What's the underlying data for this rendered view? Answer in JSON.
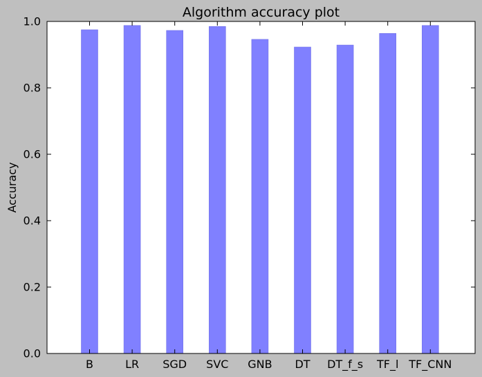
{
  "chart_data": {
    "type": "bar",
    "title": "Algorithm accuracy plot",
    "xlabel": "",
    "ylabel": "Accuracy",
    "categories": [
      "B",
      "LR",
      "SGD",
      "SVC",
      "GNB",
      "DT",
      "DT_f_s",
      "TF_l",
      "TF_CNN"
    ],
    "values": [
      0.975,
      0.988,
      0.973,
      0.985,
      0.946,
      0.923,
      0.929,
      0.964,
      0.988
    ],
    "ylim": [
      0.0,
      1.0
    ],
    "yticks": [
      "0.0",
      "0.2",
      "0.4",
      "0.6",
      "0.8",
      "1.0"
    ],
    "grid": false,
    "legend": "none",
    "colors": {
      "bar": "#8080ff",
      "bar_edge": "#7272e6",
      "figure_background": "#bfbfbf",
      "axes_background": "#ffffff"
    }
  }
}
